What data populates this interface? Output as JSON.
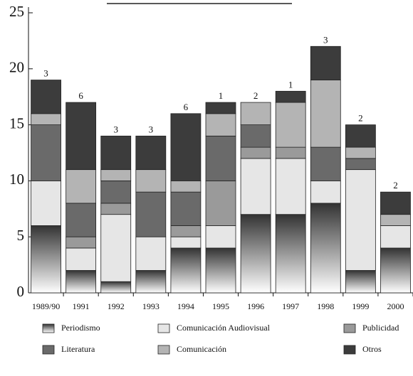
{
  "chart_data": {
    "type": "stacked_bar",
    "categories": [
      "1989/90",
      "1991",
      "1992",
      "1993",
      "1994",
      "1995",
      "1996",
      "1997",
      "1998",
      "1999",
      "2000"
    ],
    "series": [
      {
        "name": "Periodismo",
        "color": "#333333",
        "gradient": true,
        "values": [
          6,
          2,
          1,
          2,
          4,
          4,
          7,
          7,
          8,
          2,
          4
        ]
      },
      {
        "name": "Comunicación Audiovisual",
        "color": "#e6e6e6",
        "values": [
          4,
          2,
          6,
          3,
          1,
          2,
          5,
          5,
          2,
          9,
          2
        ]
      },
      {
        "name": "Publicidad",
        "color": "#9a9a9a",
        "values": [
          null,
          1,
          1,
          null,
          1,
          4,
          1,
          1,
          null,
          null,
          null
        ]
      },
      {
        "name": "Literatura",
        "color": "#6a6a6a",
        "values": [
          5,
          3,
          2,
          4,
          3,
          4,
          2,
          null,
          3,
          1,
          null
        ]
      },
      {
        "name": "Comunicación",
        "color": "#b4b4b4",
        "values": [
          1,
          3,
          1,
          2,
          1,
          2,
          2,
          4,
          6,
          1,
          1
        ]
      },
      {
        "name": "Otros",
        "color": "#3c3c3c",
        "values": [
          3,
          6,
          3,
          3,
          6,
          1,
          null,
          1,
          3,
          2,
          2
        ]
      }
    ],
    "ylim": [
      0,
      25
    ],
    "yticks": [
      0,
      5,
      10,
      15,
      20,
      25
    ]
  }
}
